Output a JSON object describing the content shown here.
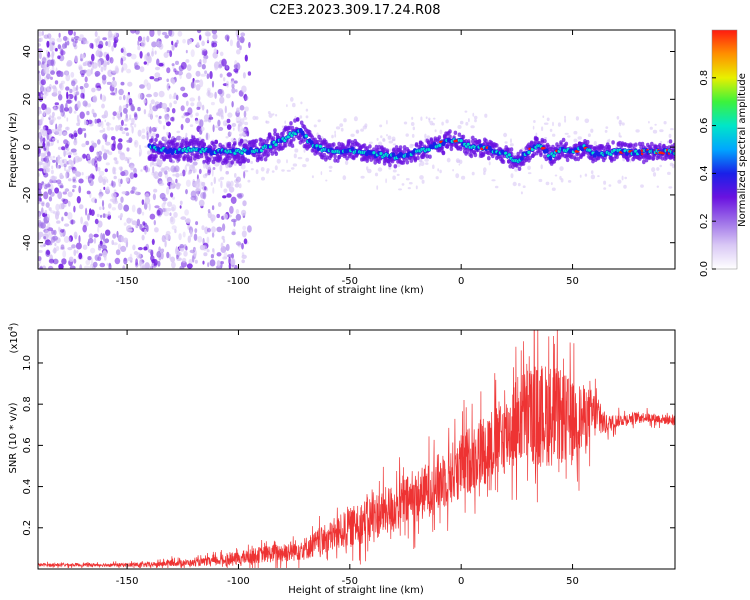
{
  "title": "C2E3.2023.309.17.24.R08",
  "colors": {
    "spectrogram_scale": [
      "#ffffff",
      "#d9c8f5",
      "#9d6fe8",
      "#6a12e0",
      "#1a20e8",
      "#00a6ff",
      "#00e6c8",
      "#3cf23c",
      "#e8f000",
      "#ff9000",
      "#ff1a10"
    ],
    "snr_line": "#ee3333"
  },
  "chart_data": [
    {
      "type": "heatmap",
      "xlabel": "Height of straight line (km)",
      "ylabel": "Frequency (Hz)",
      "xlim": [
        -190,
        96
      ],
      "ylim": [
        -51,
        49
      ],
      "xticks": [
        -150,
        -100,
        -50,
        0,
        50
      ],
      "yticks": [
        -40,
        -20,
        0,
        20,
        40
      ],
      "ridge": {
        "x": [
          -140,
          -130,
          -120,
          -110,
          -100,
          -90,
          -80,
          -75,
          -72,
          -68,
          -60,
          -50,
          -40,
          -30,
          -20,
          -10,
          -5,
          0,
          5,
          10,
          20,
          25,
          30,
          35,
          40,
          45,
          50,
          55,
          60,
          70,
          80,
          90,
          96
        ],
        "y": [
          0,
          -2,
          -1,
          -2,
          -2,
          -1,
          3,
          6,
          7,
          2,
          -2,
          -1,
          -3,
          -4,
          -2,
          1,
          3,
          2,
          0,
          0,
          -3,
          -6,
          -2,
          1,
          -4,
          -1,
          -2,
          0,
          -3,
          -2,
          -2,
          -2,
          -2
        ]
      },
      "scattered_noise_region": [
        -190,
        -105
      ],
      "colorbar": {
        "label": "Normalized spectral amplitude",
        "range": [
          0,
          1
        ],
        "ticks": [
          "0.0",
          "0.2",
          "0.4",
          "0.6",
          "0.8"
        ]
      }
    },
    {
      "type": "line",
      "xlabel": "Height of straight line (km)",
      "ylabel": "SNR (10 * v/v)",
      "scale_note": "(x10",
      "scale_exp": "4",
      "scale_close": ")",
      "xlim": [
        -190,
        96
      ],
      "ylim": [
        0,
        1.16
      ],
      "xticks": [
        -150,
        -100,
        -50,
        0,
        50
      ],
      "yticks": [
        "0.2",
        "0.4",
        "0.6",
        "0.8",
        "1.0"
      ],
      "series": [
        {
          "x": [
            -190,
            -160,
            -140,
            -130,
            -120,
            -110,
            -100,
            -90,
            -80,
            -70,
            -60,
            -50,
            -40,
            -30,
            -20,
            -10,
            0,
            10,
            20,
            25,
            30,
            40,
            50,
            60,
            65,
            70,
            80,
            96
          ],
          "y": [
            0.02,
            0.02,
            0.02,
            0.03,
            0.03,
            0.04,
            0.05,
            0.07,
            0.08,
            0.1,
            0.15,
            0.2,
            0.25,
            0.3,
            0.35,
            0.42,
            0.5,
            0.58,
            0.65,
            0.72,
            0.75,
            0.75,
            0.72,
            0.75,
            0.7,
            0.72,
            0.74,
            0.72
          ],
          "spread": [
            0.01,
            0.01,
            0.015,
            0.02,
            0.02,
            0.03,
            0.04,
            0.05,
            0.06,
            0.07,
            0.09,
            0.12,
            0.14,
            0.15,
            0.16,
            0.18,
            0.2,
            0.22,
            0.24,
            0.28,
            0.3,
            0.32,
            0.25,
            0.15,
            0.06,
            0.04,
            0.03,
            0.03
          ]
        }
      ]
    }
  ]
}
